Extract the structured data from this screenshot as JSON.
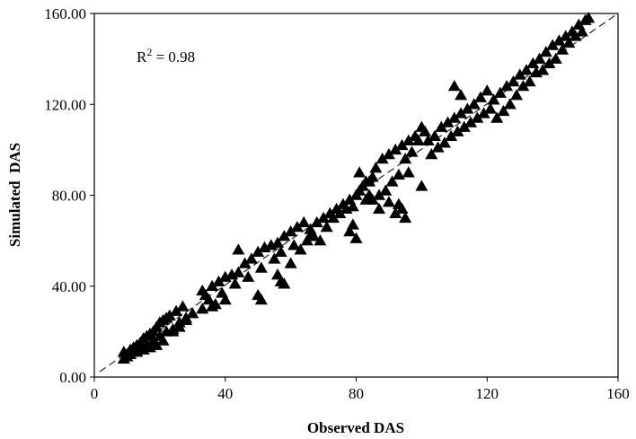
{
  "chart_data": {
    "type": "scatter",
    "title": "",
    "xlabel": "Observed DAS",
    "ylabel": "Simulated  DAS",
    "xlim": [
      0,
      160
    ],
    "ylim": [
      0,
      160
    ],
    "xticks": [
      "0",
      "40",
      "80",
      "120",
      "160"
    ],
    "yticks": [
      "0.00",
      "40.00",
      "80.00",
      "120.00",
      "160.00"
    ],
    "grid": false,
    "legend": "none",
    "annotation": {
      "prefix": "R",
      "superscript": "2",
      "suffix": " = 0.98"
    },
    "reference_line": {
      "style": "dashed",
      "from": [
        0,
        0
      ],
      "to": [
        160,
        160
      ]
    },
    "marker": "triangle",
    "marker_color": "#000000",
    "series": [
      {
        "x": [
          9,
          10,
          11,
          12,
          13,
          14,
          15,
          16,
          17,
          18,
          19,
          20,
          21,
          22,
          23,
          25,
          27,
          9,
          11,
          13,
          15,
          17,
          19,
          21,
          24,
          26,
          28,
          10,
          12,
          14,
          16,
          18,
          20,
          22,
          24,
          26,
          28,
          30,
          33,
          34,
          35,
          36,
          37,
          38,
          39,
          40,
          42,
          44,
          46,
          48,
          50,
          52,
          54,
          56,
          58,
          60,
          62,
          64,
          33,
          36,
          40,
          43,
          47,
          51,
          55,
          57,
          61,
          63,
          65,
          67,
          50,
          51,
          56,
          57,
          58,
          66,
          68,
          70,
          72,
          74,
          76,
          78,
          80,
          82,
          84,
          66,
          69,
          71,
          73,
          75,
          77,
          79,
          81,
          83,
          85,
          78,
          80,
          83,
          84,
          79,
          81,
          86,
          88,
          90,
          92,
          94,
          96,
          98,
          100,
          85,
          87,
          89,
          91,
          93,
          95,
          97,
          99,
          101,
          92,
          93,
          94,
          95,
          102,
          104,
          106,
          108,
          110,
          112,
          114,
          116,
          118,
          120,
          103,
          105,
          107,
          109,
          111,
          113,
          115,
          117,
          119,
          121,
          110,
          112,
          122,
          124,
          126,
          128,
          130,
          132,
          134,
          136,
          138,
          140,
          142,
          144,
          146,
          148,
          150,
          151,
          123,
          125,
          127,
          129,
          131,
          133,
          135,
          137,
          139,
          141,
          143,
          145,
          147,
          149,
          44,
          60,
          87,
          90,
          96,
          100
        ],
        "y": [
          8,
          10,
          12,
          13,
          14,
          15,
          17,
          18,
          19,
          20,
          22,
          24,
          25,
          26,
          27,
          29,
          31,
          11,
          10,
          11,
          12,
          13,
          14,
          16,
          20,
          22,
          25,
          9,
          11,
          13,
          14,
          16,
          18,
          20,
          21,
          24,
          26,
          28,
          38,
          36,
          34,
          40,
          32,
          42,
          37,
          44,
          45,
          46,
          50,
          52,
          55,
          57,
          58,
          59,
          62,
          64,
          66,
          68,
          30,
          31,
          34,
          41,
          44,
          48,
          52,
          55,
          58,
          56,
          60,
          62,
          36,
          34,
          45,
          42,
          41,
          65,
          68,
          70,
          72,
          74,
          76,
          78,
          80,
          84,
          86,
          62,
          60,
          66,
          70,
          72,
          74,
          75,
          82,
          78,
          88,
          64,
          61,
          86,
          80,
          67,
          90,
          92,
          96,
          98,
          100,
          102,
          104,
          106,
          110,
          78,
          74,
          82,
          86,
          89,
          96,
          99,
          104,
          108,
          72,
          76,
          74,
          70,
          104,
          106,
          110,
          112,
          114,
          116,
          118,
          120,
          123,
          126,
          98,
          101,
          103,
          106,
          108,
          110,
          112,
          114,
          116,
          118,
          128,
          124,
          122,
          125,
          128,
          130,
          133,
          135,
          138,
          140,
          143,
          146,
          148,
          150,
          152,
          155,
          157,
          158,
          114,
          117,
          120,
          124,
          128,
          130,
          134,
          135,
          138,
          140,
          144,
          147,
          150,
          152,
          56,
          50,
          80,
          77,
          90,
          84
        ]
      }
    ]
  }
}
